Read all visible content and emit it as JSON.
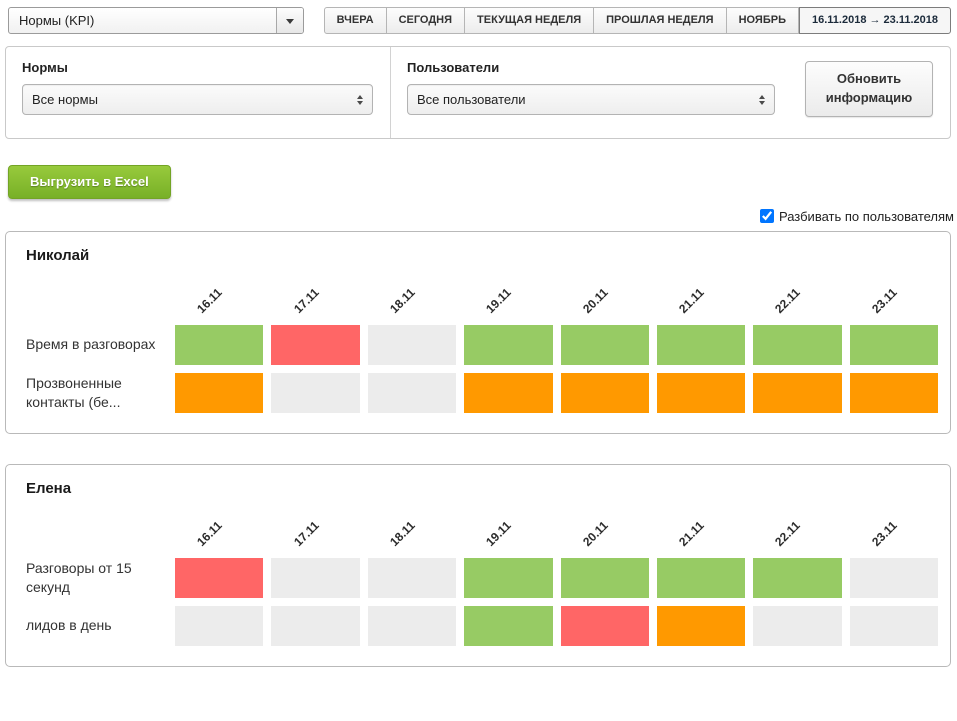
{
  "topbar": {
    "report_select": {
      "value": "Нормы (KPI)"
    },
    "period_tabs": [
      {
        "label": "ВЧЕРА"
      },
      {
        "label": "СЕГОДНЯ"
      },
      {
        "label": "ТЕКУЩАЯ НЕДЕЛЯ"
      },
      {
        "label": "ПРОШЛАЯ НЕДЕЛЯ"
      },
      {
        "label": "НОЯБРЬ"
      },
      {
        "label": "16.11.2018 → 23.11.2018"
      }
    ]
  },
  "filters": {
    "norms_label": "Нормы",
    "norms_value": "Все нормы",
    "users_label": "Пользователи",
    "users_value": "Все пользователи",
    "refresh_button": "Обновить информацию"
  },
  "actions": {
    "export_button": "Выгрузить в Excel",
    "split_checkbox_label": "Разбивать по пользователям",
    "split_checkbox_checked": true
  },
  "dates": [
    "16.11",
    "17.11",
    "18.11",
    "19.11",
    "20.11",
    "21.11",
    "22.11",
    "23.11"
  ],
  "colors": {
    "met": "#97CB64",
    "missed": "#FF6666",
    "partial": "#FF9900",
    "empty": "#ECECEC"
  },
  "users": [
    {
      "name": "Николай",
      "rows": [
        {
          "label": "Время в разговорах",
          "cells": [
            "met",
            "missed",
            "empty",
            "met",
            "met",
            "met",
            "met",
            "met"
          ]
        },
        {
          "label": "Прозвоненные контакты (бе...",
          "cells": [
            "partial",
            "empty",
            "empty",
            "partial",
            "partial",
            "partial",
            "partial",
            "partial"
          ]
        }
      ]
    },
    {
      "name": "Елена",
      "rows": [
        {
          "label": "Разговоры от 15 секунд",
          "cells": [
            "missed",
            "empty",
            "empty",
            "met",
            "met",
            "met",
            "met",
            "empty"
          ]
        },
        {
          "label": "лидов в день",
          "cells": [
            "empty",
            "empty",
            "empty",
            "met",
            "missed",
            "partial",
            "empty",
            "empty"
          ]
        }
      ]
    }
  ]
}
